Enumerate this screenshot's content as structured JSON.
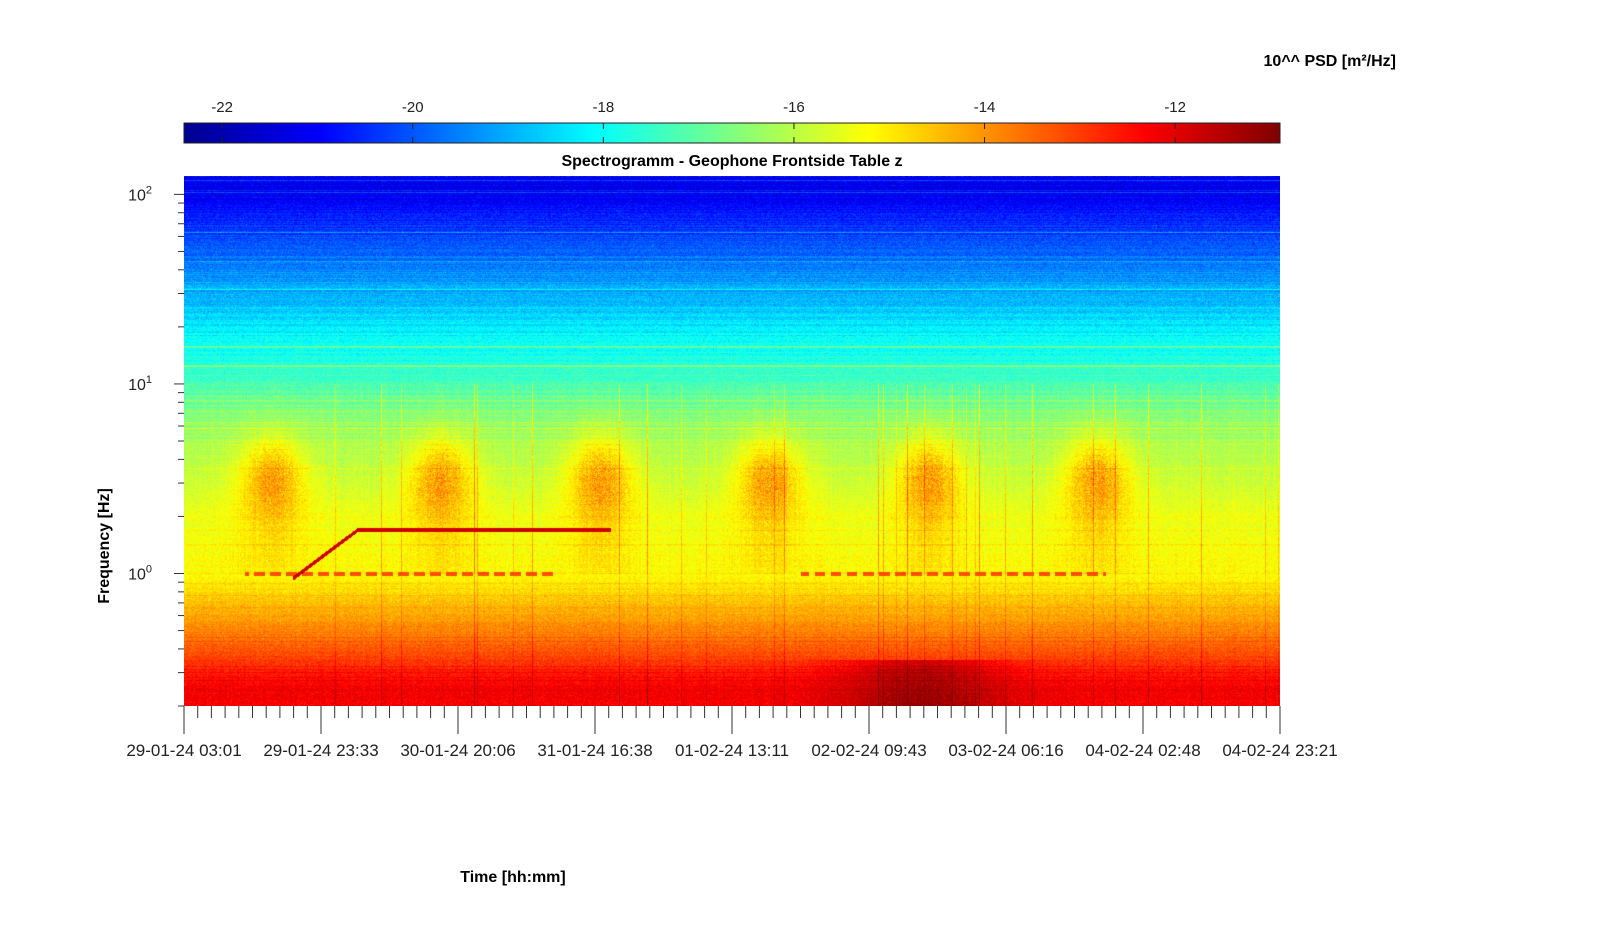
{
  "chart_data": {
    "type": "heatmap",
    "subtype": "spectrogram",
    "title": "Spectrogramm - Geophone Frontside Table z",
    "xlabel": "Time [hh:mm]",
    "ylabel": "Frequency [Hz]",
    "x_tick_labels": [
      "29-01-24 03:01",
      "29-01-24 23:33",
      "30-01-24 20:06",
      "31-01-24 16:38",
      "01-02-24 13:11",
      "02-02-24 09:43",
      "03-02-24 06:16",
      "04-02-24 02:48",
      "04-02-24 23:21"
    ],
    "y_scale": "log",
    "ylim": [
      0.2,
      125
    ],
    "y_ticks": [
      {
        "base": "10",
        "exp": "0",
        "value": 1
      },
      {
        "base": "10",
        "exp": "1",
        "value": 10
      },
      {
        "base": "10",
        "exp": "2",
        "value": 100
      }
    ],
    "colorbar": {
      "label": "10^^ PSD [m²/Hz]",
      "colormap": "jet",
      "range": [
        -22.4,
        -10.9
      ],
      "ticks": [
        -22,
        -20,
        -18,
        -16,
        -14,
        -12
      ],
      "tick_labels": [
        "-22",
        "-20",
        "-18",
        "-16",
        "-14",
        "-12"
      ]
    },
    "features": {
      "band_levels": [
        {
          "freq": 100,
          "psd_log": -21.2
        },
        {
          "freq": 50,
          "psd_log": -19.8
        },
        {
          "freq": 20,
          "psd_log": -18.3
        },
        {
          "freq": 10,
          "psd_log": -17.2
        },
        {
          "freq": 5,
          "psd_log": -16.2
        },
        {
          "freq": 2,
          "psd_log": -15.4
        },
        {
          "freq": 1,
          "psd_log": -15.2
        },
        {
          "freq": 0.5,
          "psd_log": -13.8
        },
        {
          "freq": 0.25,
          "psd_log": -12.2
        }
      ],
      "daily_activity_centers_days": [
        0.55,
        1.6,
        2.6,
        3.65,
        4.65,
        5.7
      ],
      "activity_peak_freq": 3.2,
      "activity_peak_psd_log": -13.6,
      "drifting_line": {
        "psd_log": -11.8,
        "points": [
          {
            "t": 0.68,
            "f": 0.95
          },
          {
            "t": 1.08,
            "f": 1.7
          },
          {
            "t": 2.66,
            "f": 1.7
          }
        ]
      },
      "dashed_line_1hz": {
        "psd_log": -13.2,
        "segments": [
          [
            0.38,
            2.3
          ],
          [
            3.85,
            5.75
          ]
        ]
      },
      "low_freq_dark_region": {
        "t_range": [
          4.0,
          5.2
        ],
        "f_below": 0.35,
        "psd_log": -11.1
      }
    }
  }
}
